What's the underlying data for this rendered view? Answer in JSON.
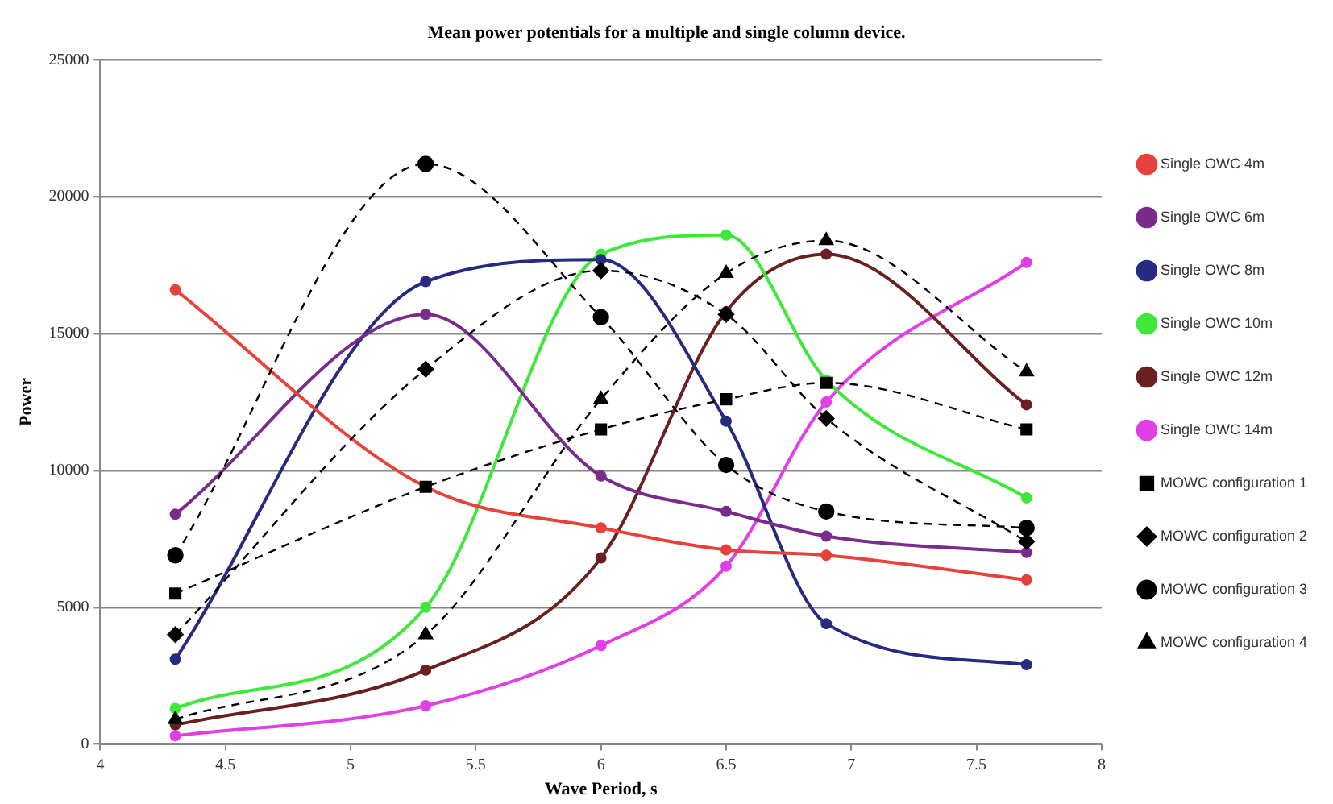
{
  "chart_data": {
    "type": "line",
    "title": "Mean power potentials for a multiple and single column device.",
    "xlabel": "Wave Period, s",
    "ylabel": "Power",
    "x": [
      4.3,
      5.3,
      6.0,
      6.5,
      6.9,
      7.7
    ],
    "xlim": [
      4,
      8
    ],
    "xticks": [
      4,
      4.5,
      5,
      5.5,
      6,
      6.5,
      7,
      7.5,
      8
    ],
    "ylim": [
      0,
      25000
    ],
    "yticks": [
      0,
      5000,
      10000,
      15000,
      20000,
      25000
    ],
    "grid": "y",
    "legend": "right",
    "series": [
      {
        "name": "Single OWC 4m",
        "color": "#e8413c",
        "marker": "circle",
        "line_style": "solid",
        "values": [
          16600,
          9400,
          7900,
          7100,
          6900,
          6000
        ]
      },
      {
        "name": "Single OWC 6m",
        "color": "#7a2c8c",
        "marker": "circle",
        "line_style": "solid",
        "values": [
          8400,
          15700,
          9800,
          8500,
          7600,
          7000
        ]
      },
      {
        "name": "Single OWC 8m",
        "color": "#262a80",
        "marker": "circle",
        "line_style": "solid",
        "values": [
          3100,
          16900,
          17700,
          11800,
          4400,
          2900
        ]
      },
      {
        "name": "Single OWC 10m",
        "color": "#3ee83a",
        "marker": "circle",
        "line_style": "solid",
        "values": [
          1300,
          5000,
          17900,
          18600,
          13300,
          9000
        ]
      },
      {
        "name": "Single OWC 12m",
        "color": "#6a2020",
        "marker": "circle",
        "line_style": "solid",
        "values": [
          700,
          2700,
          6800,
          15800,
          17900,
          12400
        ]
      },
      {
        "name": "Single OWC 14m",
        "color": "#e23ee6",
        "marker": "circle",
        "line_style": "solid",
        "values": [
          300,
          1400,
          3600,
          6500,
          12500,
          17600
        ]
      },
      {
        "name": "MOWC configuration 1",
        "color": "#000000",
        "marker": "square",
        "line_style": "dashed",
        "values": [
          5500,
          9400,
          11500,
          12600,
          13200,
          11500
        ]
      },
      {
        "name": "MOWC configuration 2",
        "color": "#000000",
        "marker": "diamond",
        "line_style": "dashed",
        "values": [
          4000,
          13700,
          17300,
          15700,
          11900,
          7400
        ]
      },
      {
        "name": "MOWC configuration 3",
        "color": "#000000",
        "marker": "circle",
        "line_style": "dashed",
        "values": [
          6900,
          21200,
          15600,
          10200,
          8500,
          7900
        ]
      },
      {
        "name": "MOWC configuration 4",
        "color": "#000000",
        "marker": "triangle",
        "line_style": "dashed",
        "values": [
          900,
          4000,
          12600,
          17200,
          18400,
          13600
        ]
      }
    ]
  }
}
